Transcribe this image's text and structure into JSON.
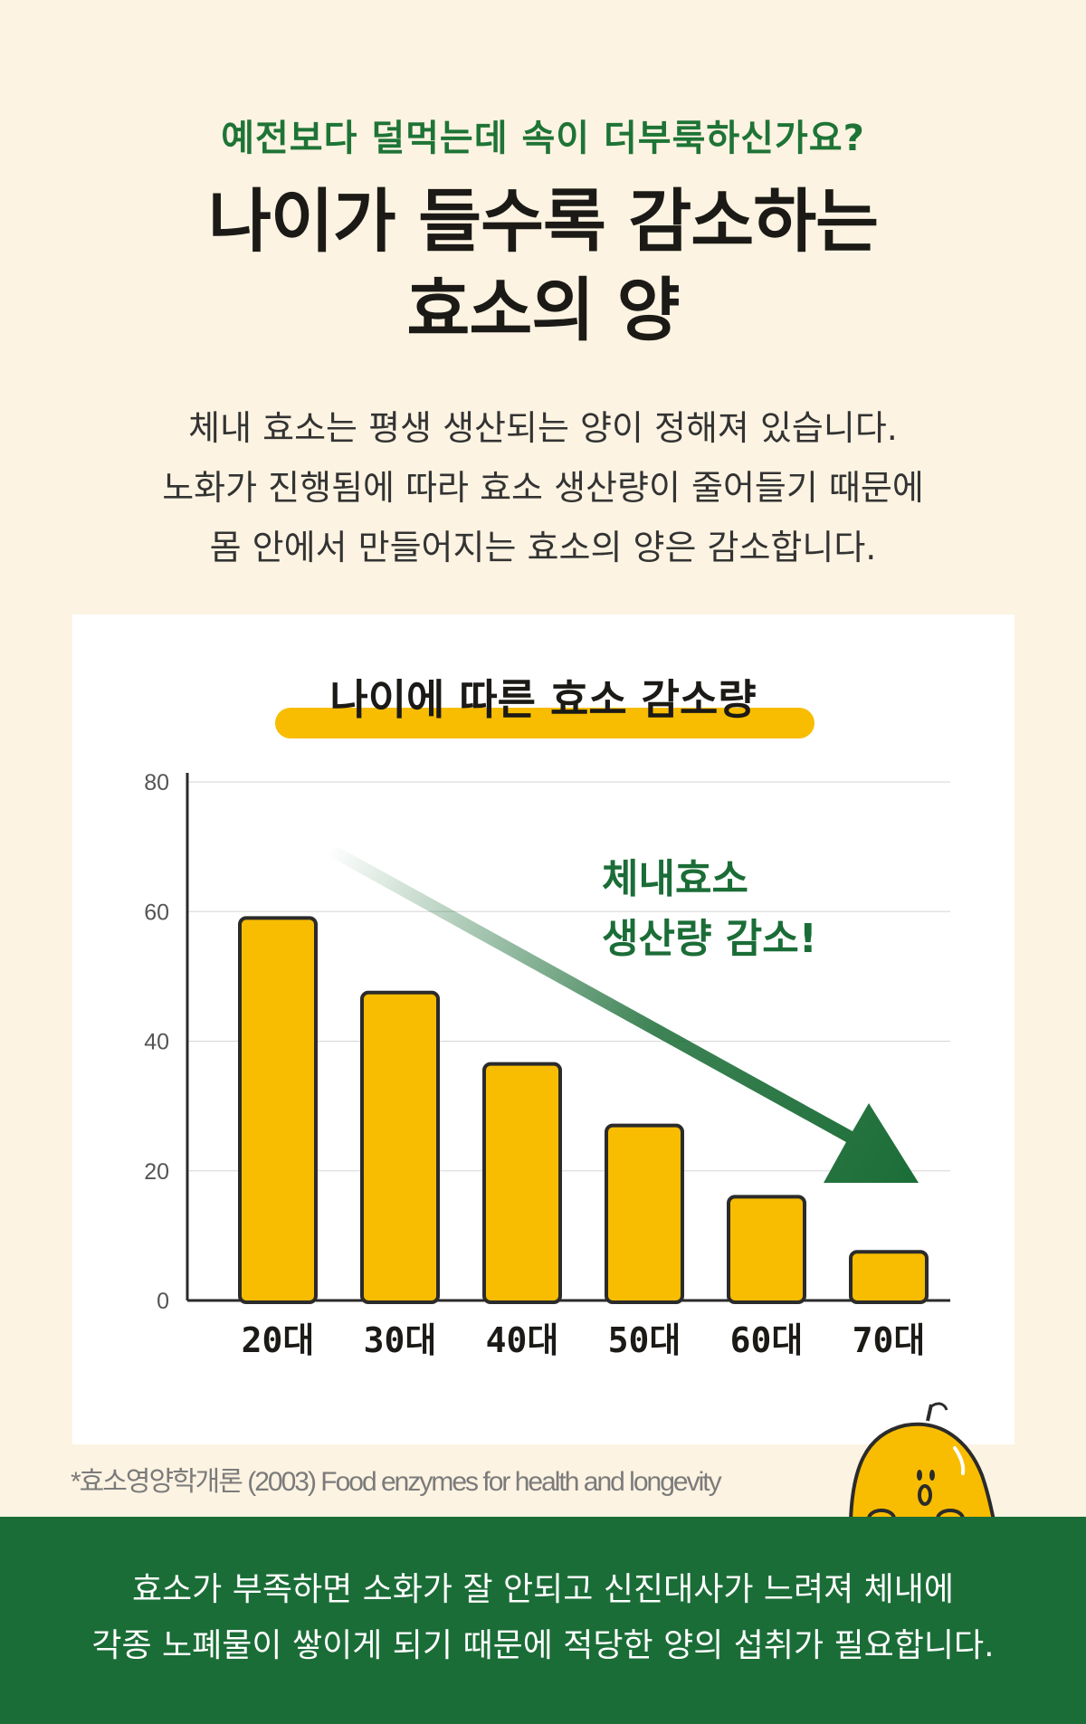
{
  "header": {
    "subtitle": "예전보다 덜먹는데 속이 더부룩하신가요?",
    "title_line1": "나이가 들수록 감소하는",
    "title_line2": "효소의 양"
  },
  "description": [
    "체내 효소는 평생 생산되는 양이 정해져 있습니다.",
    "노화가 진행됨에 따라 효소 생산량이 줄어들기 때문에",
    "몸 안에서 만들어지는 효소의 양은 감소합니다."
  ],
  "chart_data": {
    "type": "bar",
    "title": "나이에 따른 효소 감소량",
    "categories": [
      "20대",
      "30대",
      "40대",
      "50대",
      "60대",
      "70대"
    ],
    "values": [
      59,
      47.5,
      36.5,
      27,
      16,
      7.5
    ],
    "ylim": [
      0,
      80
    ],
    "yticks": [
      "0",
      "20",
      "40",
      "60",
      "80"
    ],
    "grid": true,
    "annotation": [
      "체내효소",
      "생산량 감소!"
    ],
    "colors": {
      "bar": "#f8bd00",
      "bar_outline": "#2b2b2b",
      "arrow": "#1b6d37",
      "highlight": "#f8bd00"
    }
  },
  "footnote": "*효소영양학개론 (2003) Food enzymes for health and longevity",
  "bottom_text": [
    "효소가 부족하면 소화가 잘 안되고 신진대사가 느려져 체내에",
    "각종 노폐물이 쌓이게 되기 때문에 적당한 양의 섭취가 필요합니다."
  ],
  "mascot": {
    "icon": "yellow-fruit-mascot-icon"
  }
}
